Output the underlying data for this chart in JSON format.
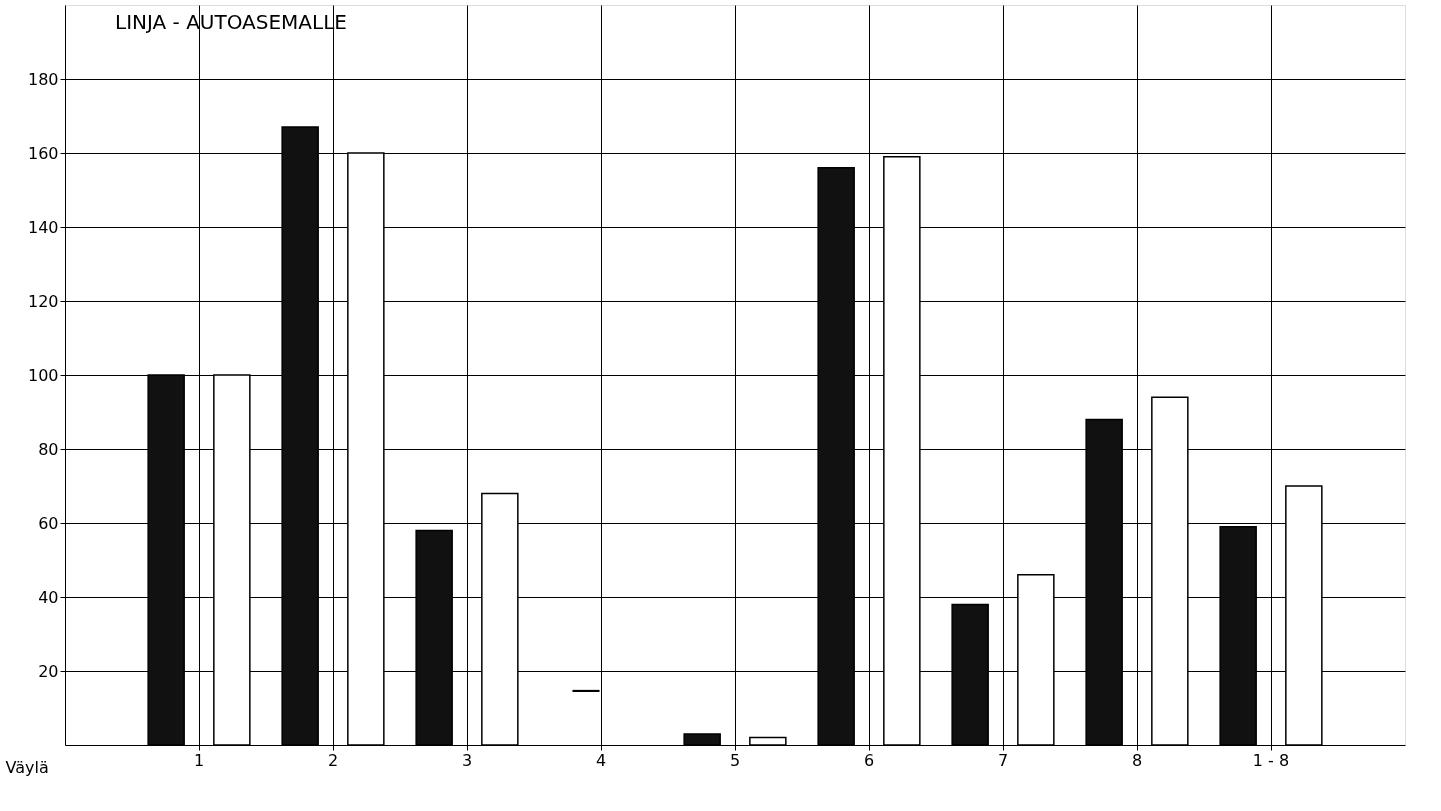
{
  "chart_data": {
    "type": "bar",
    "title": "LINJA - AUTOASEMALLE",
    "xlabel": "Väylä",
    "categories": [
      "1",
      "2",
      "3",
      "4",
      "5",
      "6",
      "7",
      "8",
      "1 - 8"
    ],
    "series": [
      {
        "color": "#111111",
        "values": [
          100,
          167,
          58,
          null,
          3,
          156,
          38,
          88,
          59
        ]
      },
      {
        "color": "#ffffff",
        "values": [
          100,
          160,
          68,
          null,
          2,
          159,
          46,
          94,
          70
        ]
      }
    ],
    "ylim": [
      0,
      200
    ],
    "yticks": [
      20,
      40,
      60,
      80,
      100,
      120,
      140,
      160,
      180
    ],
    "annotations": [
      "—"
    ],
    "grid": true
  }
}
